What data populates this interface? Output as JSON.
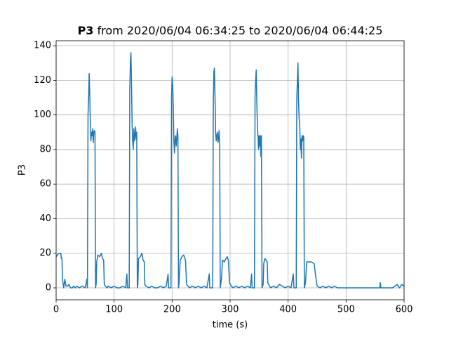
{
  "chart_data": {
    "type": "line",
    "title": [
      "P3",
      "from 2020/06/04 06:34:25 to 2020/06/04 06:44:25"
    ],
    "xlabel": "time (s)",
    "ylabel": "P3",
    "color": "#1f77b4",
    "grid": true,
    "xlim": [
      0,
      600
    ],
    "xticks": [
      0,
      100,
      200,
      300,
      400,
      500,
      600
    ],
    "ylim": [
      -6.9,
      142.9
    ],
    "yticks": [
      0,
      20,
      40,
      60,
      80,
      100,
      120,
      140
    ],
    "x": [
      0,
      2,
      5,
      8,
      9,
      10,
      11,
      13,
      15,
      17,
      20,
      22,
      25,
      28,
      30,
      33,
      36,
      40,
      45,
      50,
      52,
      53,
      54,
      55,
      56,
      57,
      58,
      59,
      60,
      61,
      62,
      63,
      64,
      65,
      66,
      67,
      68,
      69,
      70,
      72,
      75,
      78,
      80,
      82,
      83,
      85,
      88,
      90,
      95,
      100,
      105,
      110,
      115,
      120,
      122,
      123,
      126,
      127,
      128,
      129,
      130,
      131,
      132,
      133,
      134,
      135,
      136,
      137,
      138,
      139,
      140,
      141,
      142,
      145,
      148,
      150,
      152,
      153,
      155,
      160,
      165,
      170,
      175,
      180,
      185,
      190,
      193,
      194,
      198,
      199,
      200,
      201,
      202,
      203,
      204,
      205,
      206,
      207,
      208,
      209,
      210,
      211,
      212,
      214,
      217,
      220,
      223,
      225,
      230,
      235,
      240,
      245,
      250,
      255,
      260,
      264,
      265,
      270,
      271,
      272,
      273,
      274,
      275,
      276,
      277,
      278,
      279,
      280,
      281,
      282,
      283,
      285,
      287,
      290,
      293,
      295,
      297,
      299,
      302,
      305,
      310,
      315,
      320,
      325,
      330,
      335,
      337,
      338,
      342,
      343,
      344,
      345,
      346,
      347,
      348,
      349,
      350,
      351,
      352,
      353,
      354,
      355,
      357,
      358,
      360,
      362,
      364,
      365,
      368,
      370,
      375,
      380,
      385,
      390,
      395,
      400,
      405,
      409,
      410,
      414,
      415,
      416,
      417,
      418,
      419,
      420,
      421,
      422,
      423,
      424,
      425,
      426,
      427,
      428,
      430,
      432,
      435,
      440,
      445,
      447,
      450,
      455,
      460,
      465,
      470,
      475,
      480,
      485,
      490,
      500,
      520,
      540,
      558,
      559,
      560,
      580,
      588,
      590,
      592,
      596,
      600
    ],
    "values": [
      18,
      19,
      20,
      20,
      17,
      17,
      5,
      0,
      5,
      1,
      1,
      2,
      0,
      0,
      1,
      0,
      1,
      0,
      1,
      0,
      3,
      5,
      0,
      100,
      110,
      124,
      112,
      95,
      85,
      90,
      88,
      92,
      84,
      90,
      91,
      90,
      0,
      2,
      15,
      19,
      18,
      20,
      17,
      16,
      2,
      1,
      0,
      1,
      0,
      1,
      0,
      0,
      1,
      0,
      8,
      0,
      0,
      115,
      130,
      136,
      118,
      95,
      85,
      80,
      92,
      85,
      88,
      93,
      86,
      90,
      0,
      2,
      17,
      18,
      20,
      16,
      15,
      2,
      1,
      0,
      1,
      0,
      0,
      1,
      0,
      1,
      8,
      0,
      0,
      110,
      122,
      118,
      105,
      85,
      78,
      86,
      88,
      82,
      86,
      92,
      88,
      0,
      3,
      16,
      18,
      19,
      16,
      2,
      0,
      1,
      0,
      1,
      0,
      1,
      0,
      8,
      0,
      0,
      105,
      125,
      127,
      110,
      90,
      85,
      88,
      90,
      84,
      86,
      91,
      84,
      0,
      5,
      16,
      15,
      17,
      18,
      16,
      3,
      1,
      0,
      1,
      0,
      1,
      0,
      1,
      0,
      8,
      0,
      0,
      110,
      120,
      126,
      108,
      95,
      88,
      80,
      88,
      82,
      88,
      76,
      88,
      0,
      2,
      14,
      17,
      16,
      15,
      3,
      1,
      0,
      1,
      0,
      2,
      1,
      0,
      1,
      0,
      8,
      0,
      0,
      110,
      120,
      130,
      108,
      98,
      95,
      80,
      86,
      75,
      88,
      85,
      88,
      87,
      0,
      3,
      15,
      15,
      15,
      14,
      8,
      1,
      0,
      1,
      0,
      1,
      0,
      1,
      0,
      0,
      0,
      0,
      0,
      0,
      3,
      0,
      0,
      2,
      1,
      0,
      2,
      1
    ]
  }
}
